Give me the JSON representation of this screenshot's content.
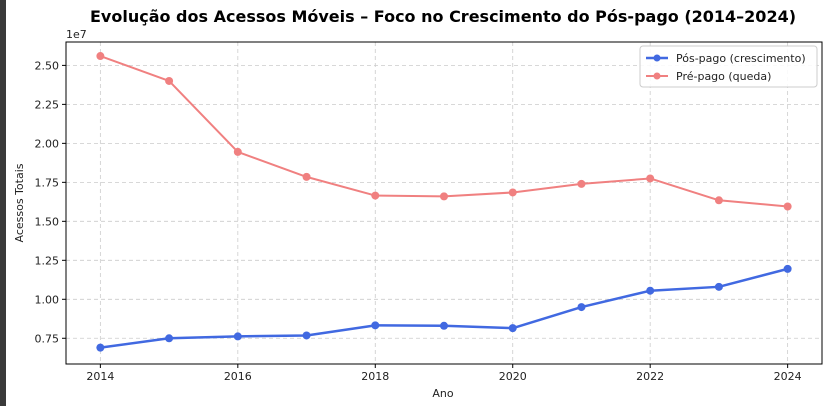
{
  "chart_data": {
    "type": "line",
    "title": "Evolução dos Acessos Móveis – Foco no Crescimento do Pós-pago (2014–2024)",
    "xlabel": "Ano",
    "ylabel": "Acessos Totais",
    "y_offset_label": "1e7",
    "x": [
      2014,
      2015,
      2016,
      2017,
      2018,
      2019,
      2020,
      2021,
      2022,
      2023,
      2024
    ],
    "xlim": [
      2013.5,
      2024.5
    ],
    "ylim": [
      5850000,
      26500000
    ],
    "x_ticks": [
      2014,
      2016,
      2018,
      2020,
      2022,
      2024
    ],
    "x_tick_labels": [
      "2014",
      "2016",
      "2018",
      "2020",
      "2022",
      "2024"
    ],
    "y_ticks": [
      7500000,
      10000000,
      12500000,
      15000000,
      17500000,
      20000000,
      22500000,
      25000000
    ],
    "y_tick_labels": [
      "0.75",
      "1.00",
      "1.25",
      "1.50",
      "1.75",
      "2.00",
      "2.25",
      "2.50"
    ],
    "grid": true,
    "legend_position": "top-right",
    "series": [
      {
        "name": "Pós-pago (crescimento)",
        "color": "#4169e1",
        "line_width": 2.5,
        "values": [
          6900000,
          7500000,
          7620000,
          7680000,
          8330000,
          8300000,
          8150000,
          9500000,
          10550000,
          10800000,
          11950000
        ]
      },
      {
        "name": "Pré-pago (queda)",
        "color": "#f08080",
        "line_width": 2,
        "values": [
          25600000,
          24000000,
          19450000,
          17850000,
          16650000,
          16600000,
          16850000,
          17400000,
          17750000,
          16350000,
          15950000
        ]
      }
    ]
  }
}
